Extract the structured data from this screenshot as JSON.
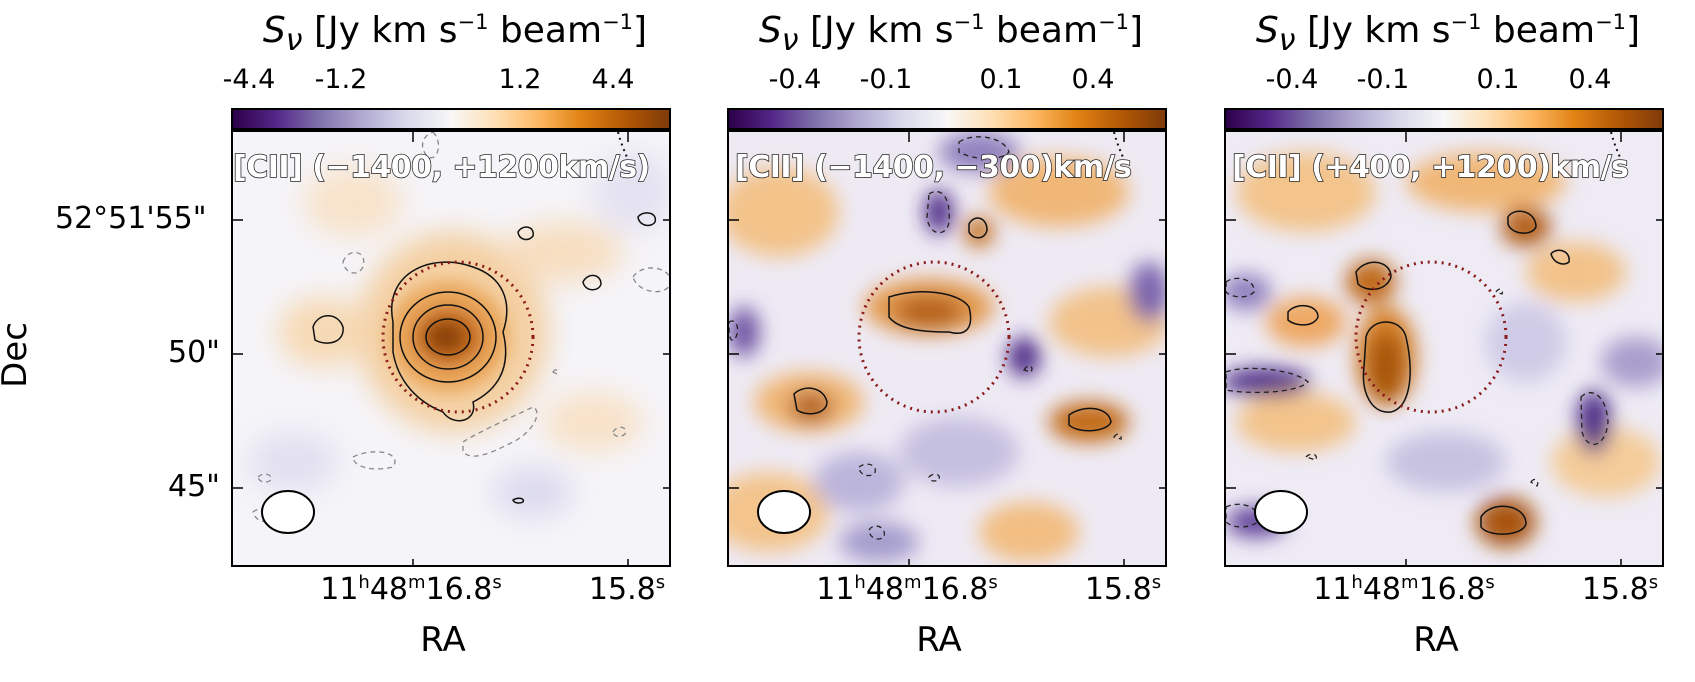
{
  "chart_data": [
    {
      "type": "heatmap",
      "title": "[CII] (−1400, +1200km/s)",
      "colorbar_label": "S_ν [Jy km s⁻¹ beam⁻¹]",
      "colorbar_ticks": [
        "-4.4",
        "-1.2",
        "1.2",
        "4.4"
      ],
      "xlabel": "RA",
      "ylabel": "Dec",
      "x_ticks": [
        "11h48m16.8s",
        "15.8s"
      ],
      "y_ticks": [
        "52°51'55\"",
        "50\"",
        "45\""
      ],
      "peak_value": 4.4,
      "colormap": "PuOr_r"
    },
    {
      "type": "heatmap",
      "title": "[CII] (−1400, −300)km/s",
      "colorbar_label": "S_ν [Jy km s⁻¹ beam⁻¹]",
      "colorbar_ticks": [
        "-0.4",
        "-0.1",
        "0.1",
        "0.4"
      ],
      "xlabel": "RA",
      "x_ticks": [
        "11h48m16.8s",
        "15.8s"
      ],
      "colormap": "PuOr_r"
    },
    {
      "type": "heatmap",
      "title": "[CII] (+400, +1200)km/s",
      "colorbar_label": "S_ν [Jy km s⁻¹ beam⁻¹]",
      "colorbar_ticks": [
        "-0.4",
        "-0.1",
        "0.1",
        "0.4"
      ],
      "xlabel": "RA",
      "x_ticks": [
        "11h48m16.8s",
        "15.8s"
      ],
      "colormap": "PuOr_r"
    }
  ],
  "text": {
    "s_nu": "S",
    "nu": "ν",
    "unit_a": " [Jy km s",
    "unit_b": " beam",
    "minus1": "−1",
    "bracket": "]",
    "ra_h": "11",
    "ra_m": "48",
    "ra_s": "16.8",
    "h": "h",
    "m": "m",
    "s": "s",
    "ra2": "15.8",
    "xlabel": "RA",
    "ylabel": "Dec",
    "y1": "52°51'55\"",
    "y2": "50\"",
    "y3": "45\""
  },
  "colors": {
    "purple_dark": "#3b0f6f",
    "purple": "#8e7cc3",
    "white": "#f7f7f7",
    "orange": "#e08a2a",
    "brown": "#7f3b08",
    "circle": "#8b1a1a"
  }
}
